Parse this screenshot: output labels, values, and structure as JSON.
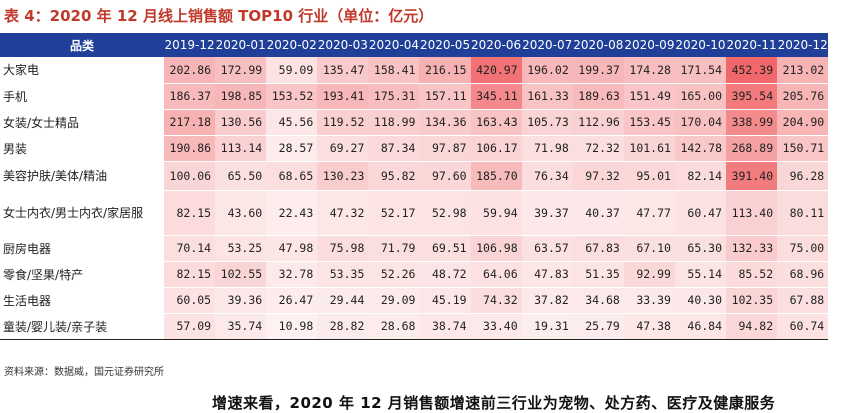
{
  "caption": "表 4：2020 年 12 月线上销售额 TOP10 行业（单位：亿元）",
  "table": {
    "corner_label": "品类",
    "months": [
      "2019-12",
      "2020-01",
      "2020-02",
      "2020-03",
      "2020-04",
      "2020-05",
      "2020-06",
      "2020-07",
      "2020-08",
      "2020-09",
      "2020-10",
      "2020-11",
      "2020-12"
    ],
    "rows": [
      {
        "category": "大家电",
        "values": [
          "202.86",
          "172.99",
          "59.09",
          "135.47",
          "158.41",
          "216.15",
          "420.97",
          "196.02",
          "199.37",
          "174.28",
          "171.54",
          "452.39",
          "213.02"
        ]
      },
      {
        "category": "手机",
        "values": [
          "186.37",
          "198.85",
          "153.52",
          "193.41",
          "175.31",
          "157.11",
          "345.11",
          "161.33",
          "189.63",
          "151.49",
          "165.00",
          "395.54",
          "205.76"
        ]
      },
      {
        "category": "女装/女士精品",
        "values": [
          "217.18",
          "130.56",
          "45.56",
          "119.52",
          "118.99",
          "134.36",
          "163.43",
          "105.73",
          "112.96",
          "153.45",
          "170.04",
          "338.99",
          "204.90"
        ]
      },
      {
        "category": "男装",
        "values": [
          "190.86",
          "113.14",
          "28.57",
          "69.27",
          "87.34",
          "97.87",
          "106.17",
          "71.98",
          "72.32",
          "101.61",
          "142.78",
          "268.89",
          "150.71"
        ]
      },
      {
        "category": "美容护肤/美体/精油",
        "values": [
          "100.06",
          "65.50",
          "68.65",
          "130.23",
          "95.82",
          "97.60",
          "185.70",
          "76.34",
          "97.32",
          "95.01",
          "82.14",
          "391.40",
          "96.28"
        ]
      },
      {
        "category": "女士内衣/男士内衣/家居服",
        "values": [
          "82.15",
          "43.60",
          "22.43",
          "47.32",
          "52.17",
          "52.98",
          "59.94",
          "39.37",
          "40.37",
          "47.77",
          "60.47",
          "113.40",
          "80.11"
        ]
      },
      {
        "category": "厨房电器",
        "values": [
          "70.14",
          "53.25",
          "47.98",
          "75.98",
          "71.79",
          "69.51",
          "106.98",
          "63.57",
          "67.83",
          "67.10",
          "65.30",
          "132.33",
          "75.00"
        ]
      },
      {
        "category": "零食/坚果/特产",
        "values": [
          "82.15",
          "102.55",
          "32.78",
          "53.35",
          "52.26",
          "48.72",
          "64.06",
          "47.83",
          "51.35",
          "92.99",
          "55.14",
          "85.52",
          "68.96"
        ]
      },
      {
        "category": "生活电器",
        "values": [
          "60.05",
          "39.36",
          "26.47",
          "29.44",
          "29.09",
          "45.19",
          "74.32",
          "37.82",
          "34.68",
          "33.39",
          "40.30",
          "102.35",
          "67.88"
        ]
      },
      {
        "category": "童装/婴儿装/亲子装",
        "values": [
          "57.09",
          "35.74",
          "10.98",
          "28.82",
          "28.68",
          "38.74",
          "33.40",
          "19.31",
          "25.79",
          "47.38",
          "46.84",
          "94.82",
          "60.74"
        ]
      }
    ],
    "heat_colors": {
      "low": "#fdf1f1",
      "high": "#f0686b"
    }
  },
  "source": "资料来源：数据威，国元证券研究所",
  "next_heading": "增速来看，2020 年 12 月销售额增速前三行业为宠物、处方药、医疗及健康服务"
}
